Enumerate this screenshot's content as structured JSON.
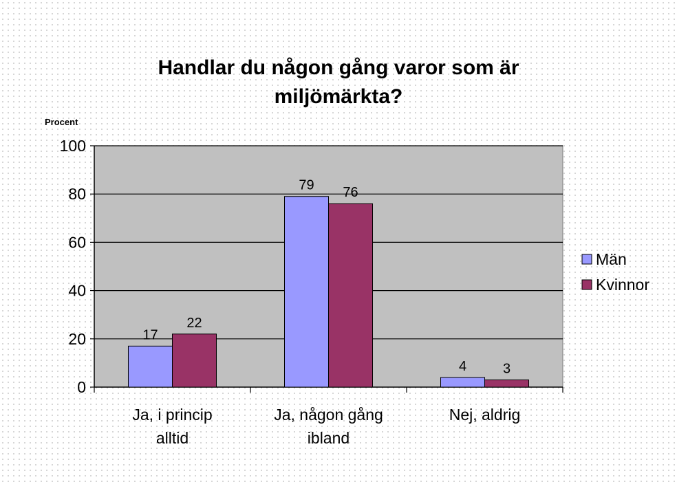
{
  "chart_data": {
    "type": "bar",
    "title_lines": [
      "Handlar du någon gång varor som är",
      "miljömärkta?"
    ],
    "ylabel": "Procent",
    "xlabel": "",
    "ylim": [
      0,
      100
    ],
    "yticks": [
      0,
      20,
      40,
      60,
      80,
      100
    ],
    "grid": true,
    "legend_position": "right",
    "categories": [
      {
        "lines": [
          "Ja, i princip",
          "alltid"
        ]
      },
      {
        "lines": [
          "Ja, någon gång",
          "ibland"
        ]
      },
      {
        "lines": [
          "Nej, aldrig"
        ]
      }
    ],
    "series": [
      {
        "name": "Män",
        "color": "#9999ff",
        "values": [
          17,
          79,
          4
        ]
      },
      {
        "name": "Kvinnor",
        "color": "#993366",
        "values": [
          22,
          76,
          3
        ]
      }
    ],
    "plot_background": "#c0c0c0"
  }
}
